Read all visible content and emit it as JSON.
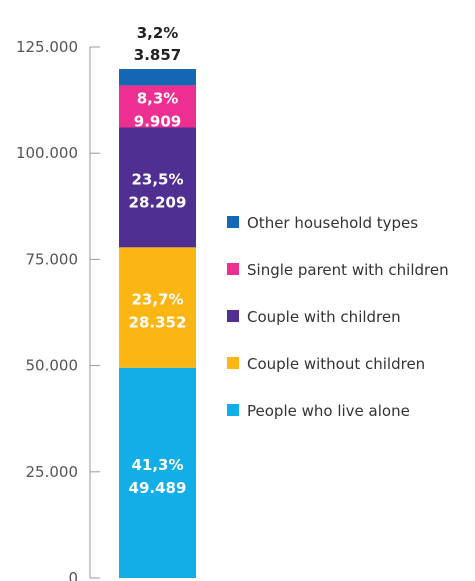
{
  "chart_data": {
    "type": "bar",
    "stacked": true,
    "categories": [
      ""
    ],
    "ylim": [
      0,
      125000
    ],
    "yticks": [
      0,
      25000,
      50000,
      75000,
      100000,
      125000
    ],
    "ytick_labels": [
      "0",
      "25.000",
      "50.000",
      "75.000",
      "100.000",
      "125.000"
    ],
    "grid": false,
    "legend_position": "right",
    "series": [
      {
        "name": "People who live alone",
        "value": 49489,
        "value_label": "49.489",
        "percent_label": "41,3%",
        "color": "#12aee8"
      },
      {
        "name": "Couple without children",
        "value": 28352,
        "value_label": "28.352",
        "percent_label": "23,7%",
        "color": "#fbb614"
      },
      {
        "name": "Couple with children",
        "value": 28209,
        "value_label": "28.209",
        "percent_label": "23,5%",
        "color": "#4f2f91"
      },
      {
        "name": "Single parent with children",
        "value": 9909,
        "value_label": "9.909",
        "percent_label": "8,3%",
        "color": "#ec2f90"
      },
      {
        "name": "Other household types",
        "value": 3857,
        "value_label": "3.857",
        "percent_label": "3,2%",
        "color": "#1467b3"
      }
    ]
  }
}
